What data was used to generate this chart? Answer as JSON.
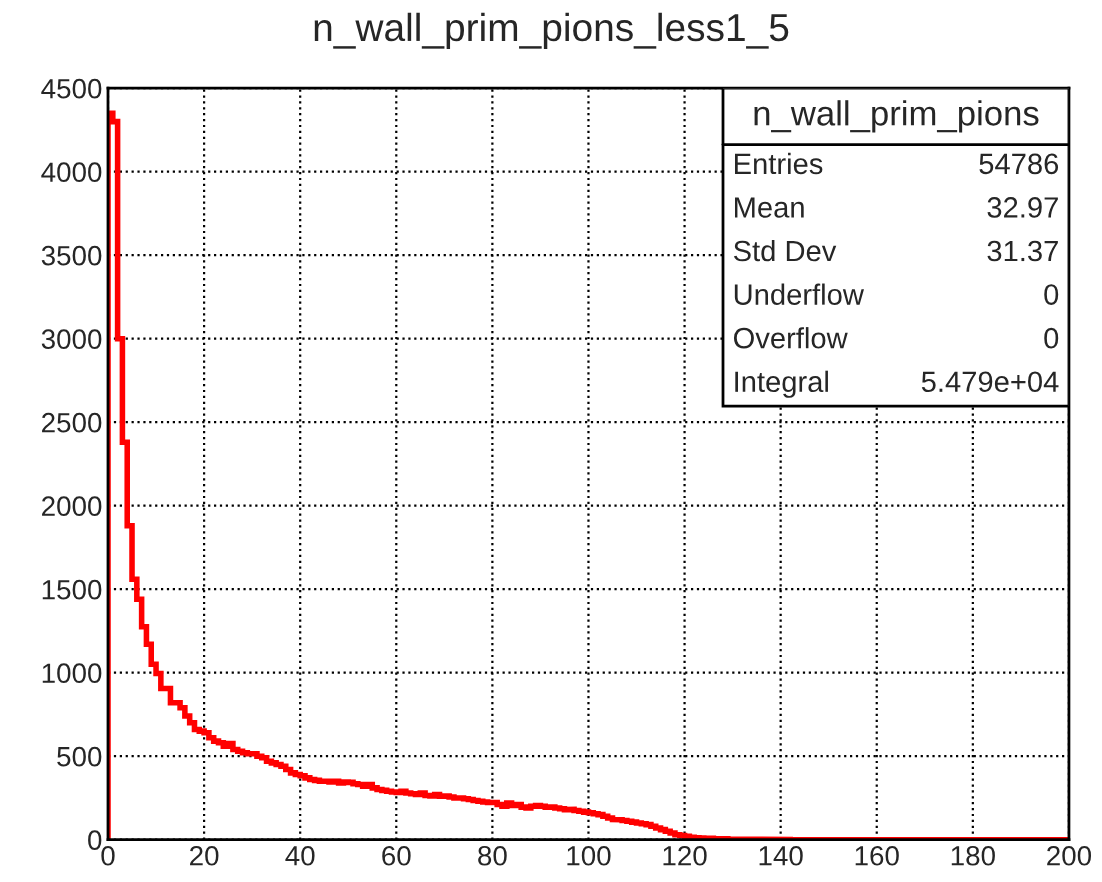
{
  "chart_data": {
    "type": "histogram",
    "title": "n_wall_prim_pions_less1_5",
    "annotations": [
      "n_wall_prim_pions",
      "Entries",
      "54786",
      "Mean",
      "32.97",
      "Std Dev",
      "31.37",
      "Underflow",
      "0",
      "Overflow",
      "0",
      "Integral",
      "5.479e+04"
    ],
    "bins": [
      0,
      1,
      2,
      3,
      4,
      5,
      6,
      7,
      8,
      9,
      10,
      11,
      12,
      13,
      14,
      15,
      16,
      17,
      18,
      19,
      20,
      21,
      22,
      23,
      24,
      25,
      26,
      27,
      28,
      29,
      30,
      31,
      32,
      33,
      34,
      35,
      36,
      37,
      38,
      39,
      40,
      41,
      42,
      43,
      44,
      45,
      46,
      47,
      48,
      49,
      50,
      51,
      52,
      53,
      54,
      55,
      56,
      57,
      58,
      59,
      60,
      61,
      62,
      63,
      64,
      65,
      66,
      67,
      68,
      69,
      70,
      71,
      72,
      73,
      74,
      75,
      76,
      77,
      78,
      79,
      80,
      81,
      82,
      83,
      84,
      85,
      86,
      87,
      88,
      89,
      90,
      91,
      92,
      93,
      94,
      95,
      96,
      97,
      98,
      99,
      100,
      101,
      102,
      103,
      104,
      105,
      106,
      107,
      108,
      109,
      110,
      111,
      112,
      113,
      114,
      115,
      116,
      117,
      118,
      119,
      120,
      121,
      122,
      123,
      124,
      125,
      126,
      127,
      128,
      129,
      130,
      131,
      132,
      133,
      134,
      135,
      136,
      137,
      138,
      139,
      140,
      141,
      142,
      143,
      144,
      145,
      146,
      147,
      148,
      149,
      150,
      151,
      152,
      153,
      154,
      155,
      156,
      157,
      158,
      159,
      160,
      161,
      162,
      163,
      164,
      165,
      166,
      167,
      168,
      169,
      170,
      171,
      172,
      173,
      174,
      175,
      176,
      177,
      178,
      179,
      180,
      181,
      182,
      183,
      184,
      185,
      186,
      187,
      188,
      189,
      190,
      191,
      192,
      193,
      194,
      195,
      196,
      197,
      198,
      199,
      200
    ],
    "values": [
      4350,
      4300,
      3000,
      2380,
      1880,
      1560,
      1440,
      1275,
      1170,
      1050,
      995,
      905,
      905,
      820,
      820,
      790,
      740,
      700,
      660,
      650,
      640,
      610,
      590,
      580,
      560,
      575,
      540,
      530,
      520,
      515,
      515,
      500,
      490,
      470,
      460,
      450,
      440,
      420,
      400,
      390,
      383,
      370,
      360,
      355,
      350,
      350,
      345,
      350,
      340,
      345,
      343,
      335,
      330,
      320,
      330,
      310,
      300,
      295,
      290,
      285,
      282,
      290,
      280,
      275,
      270,
      280,
      265,
      262,
      270,
      260,
      262,
      255,
      250,
      250,
      245,
      240,
      235,
      230,
      225,
      222,
      222,
      210,
      200,
      220,
      205,
      210,
      195,
      190,
      200,
      205,
      200,
      195,
      195,
      190,
      185,
      180,
      181,
      175,
      170,
      165,
      161,
      155,
      150,
      140,
      130,
      121,
      120,
      115,
      110,
      105,
      100,
      95,
      90,
      80,
      70,
      60,
      50,
      40,
      30,
      25,
      20,
      15,
      12,
      10,
      8,
      8,
      6,
      5,
      5,
      4,
      3,
      3,
      3,
      2,
      2,
      2,
      2,
      1,
      1,
      1,
      1,
      1,
      0,
      0,
      0,
      0,
      0,
      0,
      0,
      0,
      0,
      0,
      0,
      0,
      0,
      0,
      0,
      0,
      0,
      0,
      0,
      0,
      0,
      0,
      0,
      0,
      0,
      0,
      0,
      0,
      0,
      0,
      0,
      0,
      0,
      0,
      0,
      0,
      0,
      0,
      0,
      0,
      0,
      0,
      0,
      0,
      0,
      0,
      0,
      0,
      0,
      0,
      0,
      0,
      0,
      0,
      0,
      0,
      0,
      0
    ],
    "color": "#ff0000",
    "xlim": [
      0,
      200
    ],
    "ylim": [
      0,
      4500
    ],
    "xticks": [
      0,
      20,
      40,
      60,
      80,
      100,
      120,
      140,
      160,
      180,
      200
    ],
    "yticks": [
      0,
      500,
      1000,
      1500,
      2000,
      2500,
      3000,
      3500,
      4000,
      4500
    ],
    "grid": true
  }
}
